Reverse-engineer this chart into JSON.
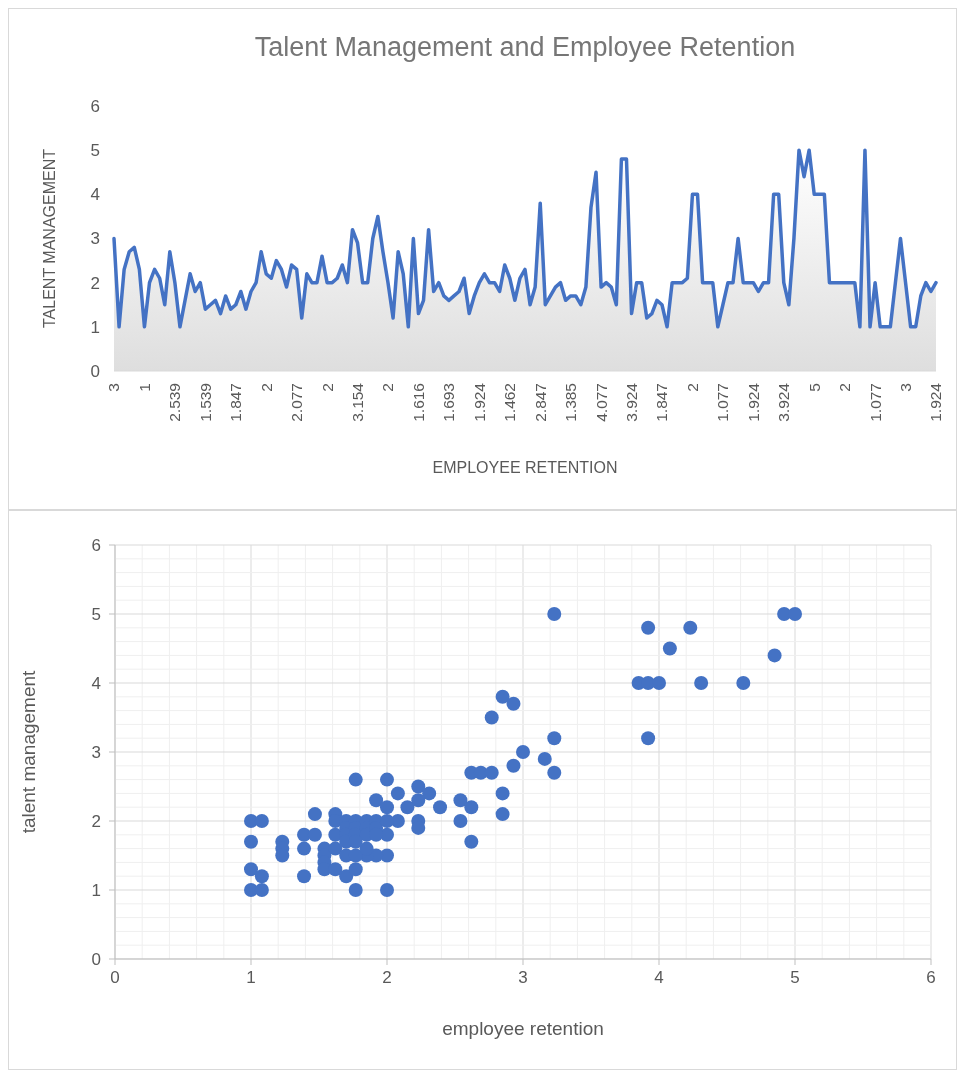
{
  "chart_data": [
    {
      "type": "area",
      "title": "Talent Management and Employee Retention",
      "xlabel": "EMPLOYEE RETENTION",
      "ylabel": "TALENT MANAGEMENT",
      "color": "#4472c4",
      "ylim": [
        0,
        6
      ],
      "yticks": [
        0,
        1,
        2,
        3,
        4,
        5,
        6
      ],
      "categories": [
        "3",
        null,
        null,
        null,
        null,
        null,
        "1",
        null,
        null,
        null,
        null,
        null,
        "2.539",
        null,
        null,
        null,
        null,
        null,
        "1.539",
        null,
        null,
        null,
        null,
        null,
        "1.847",
        null,
        null,
        null,
        null,
        null,
        "2",
        null,
        null,
        null,
        null,
        null,
        "2.077",
        null,
        null,
        null,
        null,
        null,
        "2",
        null,
        null,
        null,
        null,
        null,
        "3.154",
        null,
        null,
        null,
        null,
        null,
        "2",
        null,
        null,
        null,
        null,
        null,
        "1.616",
        null,
        null,
        null,
        null,
        null,
        "1.693",
        null,
        null,
        null,
        null,
        null,
        "1.924",
        null,
        null,
        null,
        null,
        null,
        "1.462",
        null,
        null,
        null,
        null,
        null,
        "2.847",
        null,
        null,
        null,
        null,
        null,
        "1.385",
        null,
        null,
        null,
        null,
        null,
        "4.077",
        null,
        null,
        null,
        null,
        null,
        "3.924",
        null,
        null,
        null,
        null,
        null,
        "1.847",
        null,
        null,
        null,
        null,
        null,
        "2",
        null,
        null,
        null,
        null,
        null,
        "1.077",
        null,
        null,
        null,
        null,
        null,
        "1.924",
        null,
        null,
        null,
        null,
        null,
        "3.924",
        null,
        null,
        null,
        null,
        null,
        "5",
        null,
        null,
        null,
        null,
        null,
        "2",
        null,
        null,
        null,
        null,
        null,
        "1.077",
        null,
        null,
        null,
        null,
        null,
        "3",
        null,
        null,
        null,
        null,
        null,
        "1.924"
      ],
      "values": [
        3,
        1,
        2.3,
        2.7,
        2.8,
        2.3,
        1,
        2,
        2.3,
        2.1,
        1.5,
        2.7,
        2,
        1,
        1.6,
        2.2,
        1.8,
        2,
        1.4,
        1.5,
        1.6,
        1.3,
        1.7,
        1.4,
        1.5,
        1.8,
        1.4,
        1.8,
        2,
        2.7,
        2.2,
        2.1,
        2.5,
        2.3,
        1.9,
        2.4,
        2.3,
        1.2,
        2.2,
        2,
        2,
        2.6,
        2,
        2,
        2.1,
        2.4,
        2,
        3.2,
        2.9,
        2,
        2,
        3,
        3.5,
        2.7,
        2,
        1.2,
        2.7,
        2.2,
        1,
        3,
        1.3,
        1.6,
        3.2,
        1.8,
        2,
        1.7,
        1.6,
        1.7,
        1.8,
        2.1,
        1.3,
        1.7,
        2,
        2.2,
        2,
        2,
        1.8,
        2.4,
        2.1,
        1.6,
        2.1,
        2.3,
        1.5,
        1.9,
        3.8,
        1.5,
        1.7,
        1.9,
        2,
        1.6,
        1.7,
        1.7,
        1.5,
        1.9,
        3.7,
        4.5,
        1.9,
        2,
        1.9,
        1.5,
        4.8,
        4.8,
        1.3,
        2,
        2,
        1.2,
        1.3,
        1.6,
        1.5,
        1,
        2,
        2,
        2,
        2.1,
        4,
        4,
        2,
        2,
        2,
        1,
        1.5,
        2,
        2,
        3,
        2,
        2,
        2,
        1.8,
        2,
        2,
        4,
        4,
        2,
        1.5,
        3,
        5,
        4.4,
        5,
        4,
        4,
        4,
        2,
        2,
        2,
        2,
        2,
        2,
        1,
        5,
        1,
        2,
        1,
        1,
        1,
        2,
        3,
        2,
        1,
        1,
        1.7,
        2,
        1.8,
        2
      ]
    },
    {
      "type": "scatter",
      "xlabel": "employee retention",
      "ylabel": "talent management",
      "color": "#4472c4",
      "marker": "circle",
      "grid": true,
      "xlim": [
        0,
        6
      ],
      "ylim": [
        0,
        6
      ],
      "xticks": [
        0,
        {
          "value": 0.2,
          "label": null
        },
        {
          "value": 0.4,
          "label": null
        },
        {
          "value": 0.6,
          "label": null
        },
        {
          "value": 0.8,
          "label": null
        },
        1,
        {
          "value": 1.2,
          "label": null
        },
        {
          "value": 1.4,
          "label": null
        },
        {
          "value": 1.6,
          "label": null
        },
        {
          "value": 1.8,
          "label": null
        },
        2,
        {
          "value": 2.2,
          "label": null
        },
        {
          "value": 2.4,
          "label": null
        },
        {
          "value": 2.6,
          "label": null
        },
        {
          "value": 2.8,
          "label": null
        },
        3,
        {
          "value": 3.2,
          "label": null
        },
        {
          "value": 3.4,
          "label": null
        },
        {
          "value": 3.6,
          "label": null
        },
        {
          "value": 3.8,
          "label": null
        },
        4,
        {
          "value": 4.2,
          "label": null
        },
        {
          "value": 4.4,
          "label": null
        },
        {
          "value": 4.6,
          "label": null
        },
        {
          "value": 4.8,
          "label": null
        },
        5,
        {
          "value": 5.2,
          "label": null
        },
        {
          "value": 5.4,
          "label": null
        },
        {
          "value": 5.6,
          "label": null
        },
        {
          "value": 5.8,
          "label": null
        },
        6
      ],
      "yticks": [
        0,
        {
          "value": 0.2,
          "label": null
        },
        {
          "value": 0.4,
          "label": null
        },
        {
          "value": 0.6,
          "label": null
        },
        {
          "value": 0.8,
          "label": null
        },
        1,
        {
          "value": 1.2,
          "label": null
        },
        {
          "value": 1.4,
          "label": null
        },
        {
          "value": 1.6,
          "label": null
        },
        {
          "value": 1.8,
          "label": null
        },
        2,
        {
          "value": 2.2,
          "label": null
        },
        {
          "value": 2.4,
          "label": null
        },
        {
          "value": 2.6,
          "label": null
        },
        {
          "value": 2.8,
          "label": null
        },
        3,
        {
          "value": 3.2,
          "label": null
        },
        {
          "value": 3.4,
          "label": null
        },
        {
          "value": 3.6,
          "label": null
        },
        {
          "value": 3.8,
          "label": null
        },
        4,
        {
          "value": 4.2,
          "label": null
        },
        {
          "value": 4.4,
          "label": null
        },
        {
          "value": 4.6,
          "label": null
        },
        {
          "value": 4.8,
          "label": null
        },
        5,
        {
          "value": 5.2,
          "label": null
        },
        {
          "value": 5.4,
          "label": null
        },
        {
          "value": 5.6,
          "label": null
        },
        {
          "value": 5.8,
          "label": null
        },
        6
      ],
      "x": [
        1,
        1.08,
        1,
        1,
        1.08,
        1,
        1.08,
        1.23,
        1.23,
        1.23,
        1.39,
        1.39,
        1.39,
        1.47,
        1.47,
        1.54,
        1.54,
        1.54,
        1.54,
        1.62,
        1.62,
        1.7,
        1.77,
        1.77,
        1.77,
        2,
        2,
        2,
        1.92,
        1.85,
        1.92,
        2.08,
        2.08,
        2,
        2,
        2.15,
        2.23,
        2.23,
        2.23,
        2.31,
        2.39,
        2.23,
        1.62,
        1.62,
        1.62,
        1.7,
        1.7,
        1.7,
        1.7,
        1.7,
        1.77,
        1.77,
        1.77,
        1.77,
        1.85,
        1.85,
        1.85,
        1.85,
        1.92,
        1.92,
        1.92,
        2,
        1.77,
        2.54,
        2.54,
        2.62,
        2.62,
        2.62,
        2.69,
        2.77,
        2.77,
        2.85,
        2.93,
        2.85,
        2.85,
        2.93,
        3,
        3.16,
        3.23,
        3.23,
        3.23,
        3.85,
        3.92,
        4,
        3.92,
        4.08,
        4.23,
        4.31,
        4.62,
        3.92,
        4.85,
        4.92,
        5
      ],
      "values": [
        2,
        2,
        1.7,
        1.3,
        1.2,
        1,
        1,
        1.7,
        1.6,
        1.5,
        1.8,
        1.6,
        1.2,
        1.8,
        2.1,
        1.6,
        1.5,
        1.4,
        1.3,
        2.1,
        1.3,
        1.2,
        2.6,
        1,
        1.3,
        2.6,
        1,
        1.5,
        1.5,
        1.5,
        2.3,
        2.4,
        2,
        1.8,
        2.2,
        2.2,
        2.5,
        2,
        1.9,
        2.4,
        2.2,
        2.3,
        2,
        1.8,
        1.6,
        2,
        1.9,
        1.8,
        1.7,
        1.5,
        2,
        1.9,
        1.8,
        1.5,
        2,
        1.9,
        1.8,
        1.6,
        2,
        1.9,
        1.8,
        2,
        1.7,
        2.3,
        2,
        2.2,
        1.7,
        2.7,
        2.7,
        2.7,
        3.5,
        3.8,
        3.7,
        2.4,
        2.1,
        2.8,
        3,
        2.9,
        3.2,
        2.7,
        5,
        4,
        4,
        4,
        4.8,
        4.5,
        4.8,
        4,
        4,
        3.2,
        4.4,
        5,
        5
      ]
    }
  ]
}
